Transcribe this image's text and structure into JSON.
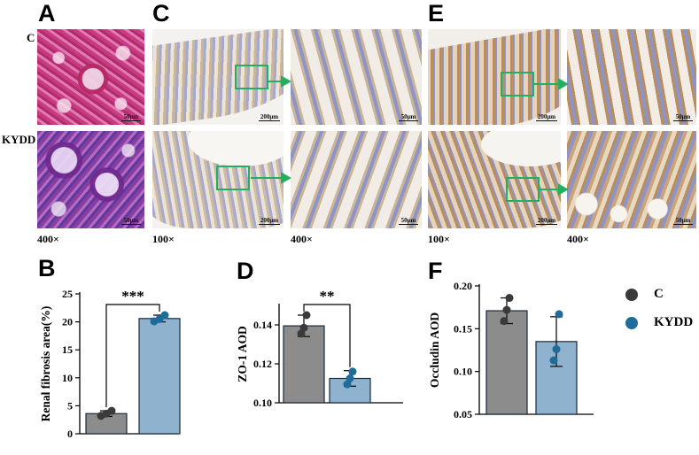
{
  "figure": {
    "panels": {
      "A": "A",
      "B": "B",
      "C": "C",
      "D": "D",
      "E": "E",
      "F": "F"
    },
    "groups": {
      "control": "C",
      "model": "KYDD"
    },
    "magnifications": {
      "a": "400×",
      "c_low": "100×",
      "c_high": "400×",
      "e_low": "100×",
      "e_high": "400×"
    },
    "scale_bars": {
      "s50": "50μm",
      "s200": "200μm"
    }
  },
  "legend": {
    "items": [
      {
        "label": "C",
        "color": "#3a3a3a"
      },
      {
        "label": "KYDD",
        "color": "#1f6b99"
      }
    ]
  },
  "colors": {
    "control_bar": "#8c8c8c",
    "kydd_bar": "#8fb2cf",
    "control_dot": "#3a3a3a",
    "kydd_dot": "#1f6b99",
    "zoom_box": "#22b060"
  },
  "chart_data": [
    {
      "id": "B",
      "type": "bar",
      "ylabel": "Renal fibrosis area(%)",
      "ylim": [
        0,
        25
      ],
      "yticks": [
        0,
        5,
        10,
        15,
        20,
        25
      ],
      "categories": [
        "C",
        "KYDD"
      ],
      "values": [
        3.6,
        20.6
      ],
      "errors": [
        0.5,
        0.6
      ],
      "points": [
        [
          3.2,
          3.6,
          4.1
        ],
        [
          20.1,
          20.5,
          21.2
        ]
      ],
      "significance": "***"
    },
    {
      "id": "D",
      "type": "bar",
      "ylabel": "ZO-1 AOD",
      "ylim": [
        0.1,
        0.15
      ],
      "yticks": [
        "0.10",
        "0.12",
        "0.14"
      ],
      "categories": [
        "C",
        "KYDD"
      ],
      "values": [
        0.1395,
        0.1125
      ],
      "errors": [
        0.0055,
        0.004
      ],
      "points": [
        [
          0.1355,
          0.1385,
          0.145
        ],
        [
          0.1095,
          0.1125,
          0.116
        ]
      ],
      "significance": "**"
    },
    {
      "id": "F",
      "type": "bar",
      "ylabel": "Occludin AOD",
      "ylim": [
        0.05,
        0.2
      ],
      "yticks": [
        "0.05",
        "0.10",
        "0.15",
        "0.20"
      ],
      "categories": [
        "C",
        "KYDD"
      ],
      "values": [
        0.171,
        0.135
      ],
      "errors": [
        0.015,
        0.029
      ],
      "points": [
        [
          0.159,
          0.172,
          0.186
        ],
        [
          0.113,
          0.126,
          0.167
        ]
      ],
      "significance": ""
    }
  ]
}
